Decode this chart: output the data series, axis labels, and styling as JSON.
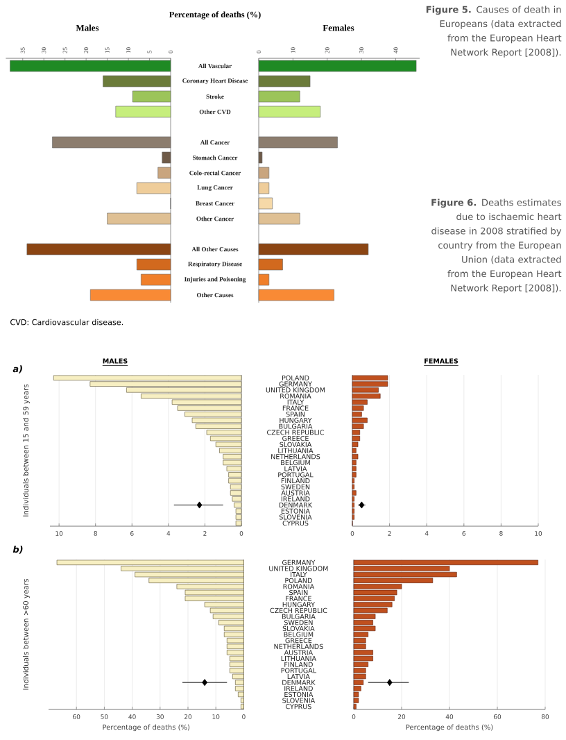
{
  "chart_data": [
    {
      "type": "bar",
      "orientation": "horizontal",
      "title": "Males",
      "annotations": [
        "Percentage of deaths (%)",
        "CVD: Cardiovascular disease.",
        "**Figure 5.** Causes of death in Europeans (data extracted from the European Heart Network Report [2008])."
      ],
      "categories": [
        "All Vascular",
        "Coronary Heart Disease",
        "Stroke",
        "Other CVD",
        null,
        "All Cancer",
        "Stomach Cancer",
        "Colo-rectal Cancer",
        "Lung Cancer",
        "Breast Cancer",
        "Other Cancer",
        null,
        "All Other Causes",
        "Respiratory Disease",
        "Injuries and Poisoning",
        "Other Causes"
      ],
      "values": [
        38,
        16,
        9,
        13,
        null,
        28,
        2,
        3,
        8,
        0,
        15,
        null,
        34,
        8,
        7,
        19
      ],
      "colors": [
        "#1f8a24",
        "#6b7b3a",
        "#9cc45a",
        "#c6ee7c",
        null,
        "#8c7d6e",
        "#6e5a48",
        "#c9a57e",
        "#efcd9a",
        "#f6d9a8",
        "#dfc094",
        null,
        "#8b4513",
        "#d2691e",
        "#f07f2a",
        "#f98a35"
      ],
      "xlim": [
        39,
        0
      ],
      "xticks": [
        35,
        30,
        25,
        20,
        15,
        10,
        5,
        0
      ],
      "tick_labels": "x"
    },
    {
      "type": "bar",
      "orientation": "horizontal",
      "title": "Females",
      "categories": [
        "All Vascular",
        "Coronary Heart Disease",
        "Stroke",
        "Other CVD",
        null,
        "All Cancer",
        "Stomach Cancer",
        "Colo-rectal Cancer",
        "Lung Cancer",
        "Breast Cancer",
        "Other Cancer",
        null,
        "All Other Causes",
        "Respiratory Disease",
        "Injuries and Poisoning",
        "Other Causes"
      ],
      "values": [
        46,
        15,
        12,
        18,
        null,
        23,
        1,
        3,
        3,
        4,
        12,
        null,
        32,
        7,
        3,
        22
      ],
      "colors": [
        "#1f8a24",
        "#6b7b3a",
        "#9cc45a",
        "#c6ee7c",
        null,
        "#8c7d6e",
        "#6e5a48",
        "#c9a57e",
        "#efcd9a",
        "#f6d9a8",
        "#dfc094",
        null,
        "#8b4513",
        "#d2691e",
        "#f07f2a",
        "#f98a35"
      ],
      "xlim": [
        0,
        47
      ],
      "xticks": [
        0,
        10,
        20,
        30,
        40
      ]
    },
    {
      "type": "bar",
      "orientation": "horizontal",
      "title": "MALES",
      "ylabel": "Individuals between 15 and 59 years",
      "annotations": [
        "a)",
        "**Figure 6.** Deaths estimates due to ischaemic heart disease in 2008 stratified by country from the European Union (data extracted from the European Heart Network Report [2008])."
      ],
      "categories": [
        "POLAND",
        "GERMANY",
        "UNITED KINGDOM",
        "ROMANIA",
        "ITALY",
        "FRANCE",
        "SPAIN",
        "HUNGARY",
        "BULGARIA",
        "CZECH REPUBLIC",
        "GREECE",
        "SLOVAKIA",
        "LITHUANIA",
        "NETHERLANDS",
        "BELGIUM",
        "LATVIA",
        "PORTUGAL",
        "FINLAND",
        "SWEDEN",
        "AUSTRIA",
        "IRELAND",
        "DENMARK",
        "ESTONIA",
        "SLOVENIA",
        "CYPRUS"
      ],
      "series": [
        {
          "color": "#f7efc2",
          "values": [
            10.3,
            8.3,
            6.3,
            5.5,
            3.8,
            3.5,
            3.1,
            2.7,
            2.5,
            1.9,
            1.7,
            1.4,
            1.2,
            1.0,
            1.0,
            0.8,
            0.7,
            0.7,
            0.6,
            0.6,
            0.5,
            0.4,
            0.3,
            0.3,
            0.3
          ]
        },
        {
          "type": "scatter",
          "marker": "diamond",
          "color": "#000000",
          "x": [
            "DENMARK"
          ],
          "values": [
            2.3
          ],
          "errors": [
            [
              1.0,
              3.7
            ]
          ]
        }
      ],
      "xlim": [
        10.5,
        0
      ],
      "xticks": [
        10,
        8,
        6,
        4,
        2,
        0
      ],
      "grid": "x"
    },
    {
      "type": "bar",
      "orientation": "horizontal",
      "title": "FEMALES",
      "categories": [
        "POLAND",
        "GERMANY",
        "UNITED KINGDOM",
        "ROMANIA",
        "ITALY",
        "FRANCE",
        "SPAIN",
        "HUNGARY",
        "BULGARIA",
        "CZECH REPUBLIC",
        "GREECE",
        "SLOVAKIA",
        "LITHUANIA",
        "NETHERLANDS",
        "BELGIUM",
        "LATVIA",
        "PORTUGAL",
        "FINLAND",
        "SWEDEN",
        "AUSTRIA",
        "IRELAND",
        "DENMARK",
        "ESTONIA",
        "SLOVENIA",
        "CYPRUS"
      ],
      "series": [
        {
          "color": "#c0501e",
          "values": [
            1.9,
            1.9,
            1.4,
            1.5,
            0.8,
            0.6,
            0.5,
            0.8,
            0.6,
            0.4,
            0.4,
            0.3,
            0.2,
            0.3,
            0.2,
            0.2,
            0.2,
            0.1,
            0.1,
            0.2,
            0.1,
            0.1,
            0.1,
            0.1,
            0
          ]
        },
        {
          "type": "scatter",
          "marker": "diamond",
          "color": "#000000",
          "x": [
            "DENMARK"
          ],
          "values": [
            0.5
          ],
          "errors": [
            [
              0.3,
              0.7
            ]
          ]
        }
      ],
      "xlim": [
        0,
        10
      ],
      "xticks": [
        0,
        2,
        4,
        6,
        8,
        10
      ],
      "grid": "x",
      "tick_labels": "x"
    },
    {
      "type": "bar",
      "orientation": "horizontal",
      "ylabel": "Individuals between >60 years",
      "xlabel": "Percentage of deaths (%)",
      "annotations": [
        "b)"
      ],
      "categories": [
        "GERMANY",
        "UNITED KINGDOM",
        "ITALY",
        "POLAND",
        "ROMANIA",
        "SPAIN",
        "FRANCE",
        "HUNGARY",
        "CZECH REPUBLIC",
        "BULGARIA",
        "SWEDEN",
        "SLOVAKIA",
        "BELGIUM",
        "GREECE",
        "NETHERLANDS",
        "AUSTRIA",
        "LITHUANIA",
        "FINLAND",
        "PORTUGAL",
        "LATVIA",
        "DENMARK",
        "IRELAND",
        "ESTONIA",
        "SLOVENIA",
        "CYPRUS"
      ],
      "series": [
        {
          "color": "#f7efc2",
          "values": [
            67,
            44,
            39,
            34,
            24,
            21,
            21,
            14,
            12,
            11,
            9,
            7,
            7,
            6,
            6,
            6,
            5,
            5,
            5,
            4,
            3,
            3,
            2,
            1,
            1
          ]
        },
        {
          "type": "scatter",
          "marker": "diamond",
          "color": "#000000",
          "x": [
            "DENMARK"
          ],
          "values": [
            14
          ],
          "errors": [
            [
              6,
              22
            ]
          ]
        }
      ],
      "xlim": [
        70,
        0
      ],
      "xticks": [
        60,
        50,
        40,
        30,
        20,
        10,
        0
      ],
      "grid": "x"
    },
    {
      "type": "bar",
      "orientation": "horizontal",
      "xlabel": "Percentage of deaths (%)",
      "categories": [
        "GERMANY",
        "UNITED KINGDOM",
        "ITALY",
        "POLAND",
        "ROMANIA",
        "SPAIN",
        "FRANCE",
        "HUNGARY",
        "CZECH REPUBLIC",
        "BULGARIA",
        "SWEDEN",
        "SLOVAKIA",
        "BELGIUM",
        "GREECE",
        "NETHERLANDS",
        "AUSTRIA",
        "LITHUANIA",
        "FINLAND",
        "PORTUGAL",
        "LATVIA",
        "DENMARK",
        "IRELAND",
        "ESTONIA",
        "SLOVENIA",
        "CYPRUS"
      ],
      "series": [
        {
          "color": "#c0501e",
          "values": [
            77,
            40,
            43,
            33,
            20,
            18,
            17,
            16,
            14,
            9,
            8,
            9,
            6,
            5,
            5,
            8,
            8,
            6,
            5,
            5,
            4,
            3,
            2,
            2,
            1
          ]
        },
        {
          "type": "scatter",
          "marker": "diamond",
          "color": "#000000",
          "x": [
            "DENMARK"
          ],
          "values": [
            15
          ],
          "errors": [
            [
              6,
              23
            ]
          ]
        }
      ],
      "xlim": [
        0,
        80
      ],
      "xticks": [
        0,
        20,
        40,
        60,
        80
      ],
      "grid": "x",
      "tick_labels": "x"
    }
  ]
}
